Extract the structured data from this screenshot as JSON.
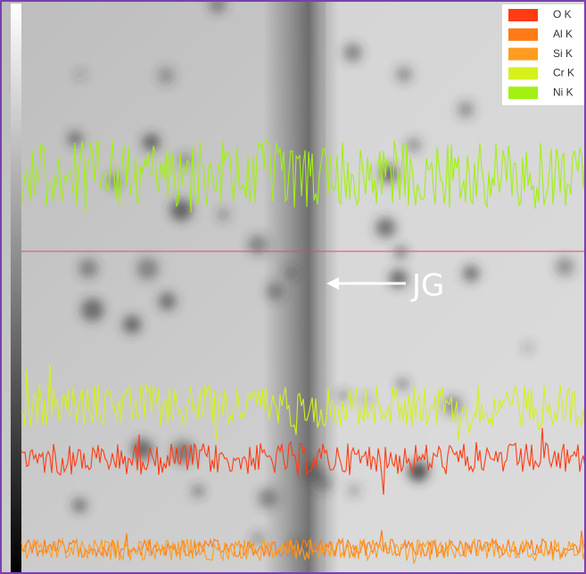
{
  "legend": {
    "items": [
      {
        "label": "O K",
        "color": "#ff3c14"
      },
      {
        "label": "Al K",
        "color": "#ff7a14"
      },
      {
        "label": "Si K",
        "color": "#ff9c20"
      },
      {
        "label": "Cr K",
        "color": "#d6f01e"
      },
      {
        "label": "Ni K",
        "color": "#a2f014"
      }
    ]
  },
  "annotation": {
    "label": "JG"
  }
}
